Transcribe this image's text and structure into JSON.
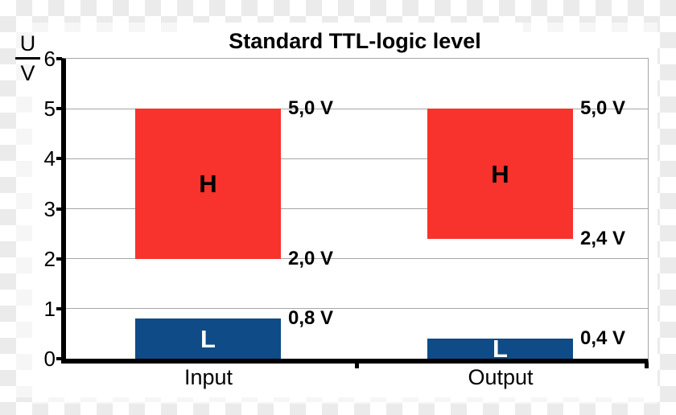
{
  "chart_data": {
    "type": "bar",
    "subtype": "floating-range-bars",
    "title": "Standard TTL-logic level",
    "ylabel": "U/V",
    "ylabel_numerator": "U",
    "ylabel_denominator": "V",
    "ylim": [
      0,
      6
    ],
    "ytick_labels": [
      "0",
      "1",
      "2",
      "3",
      "4",
      "5",
      "6"
    ],
    "grid": "horizontal-gridlines",
    "legend": "none",
    "categories": [
      "Input",
      "Output"
    ],
    "groups": [
      {
        "category": "Input",
        "bars": [
          {
            "name": "H",
            "from": 2.0,
            "to": 5.0,
            "color": "#f8322c",
            "text_color": "#000000",
            "top_label": "5,0 V",
            "bottom_label": "2,0 V"
          },
          {
            "name": "L",
            "from": 0,
            "to": 0.8,
            "color": "#0f4b86",
            "text_color": "#ffffff",
            "top_label": "0,8 V"
          }
        ]
      },
      {
        "category": "Output",
        "bars": [
          {
            "name": "H",
            "from": 2.4,
            "to": 5.0,
            "color": "#f8322c",
            "text_color": "#000000",
            "top_label": "5,0 V",
            "bottom_label": "2,4 V"
          },
          {
            "name": "L",
            "from": 0,
            "to": 0.4,
            "color": "#0f4b86",
            "text_color": "#ffffff",
            "top_label": "0,4 V"
          }
        ]
      }
    ]
  },
  "colors": {
    "figure_bg": "#ffffff",
    "checker_gray": "#ebebeb",
    "gridline": "#a6a6a6",
    "axis": "#000000",
    "high_bar": "#f8322c",
    "low_bar": "#0f4b86"
  }
}
